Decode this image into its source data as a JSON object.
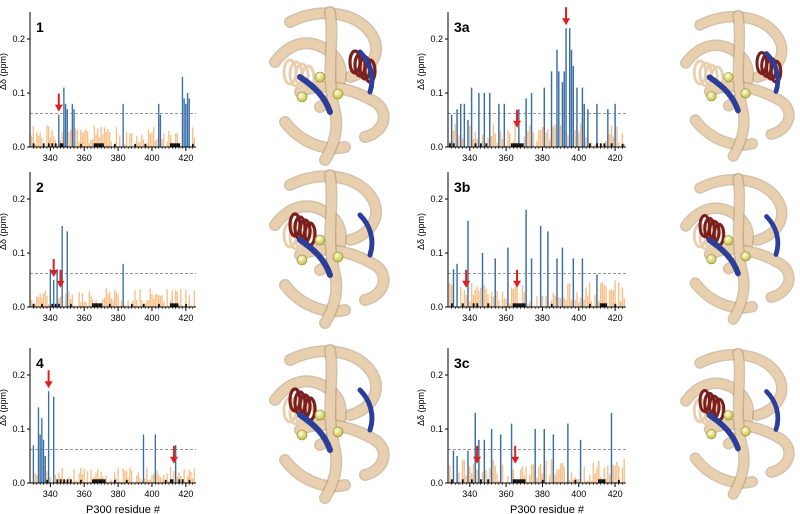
{
  "figure": {
    "xlabel": "P300 residue #",
    "colors": {
      "strong": "#3a6ea8",
      "weak": "#f7c08a",
      "black": "#111111",
      "arrow": "#e02020",
      "threshold": "#9a9a9a",
      "structure_base": "#e8cfae",
      "structure_accent": "#7a1e1e",
      "structure_blue": "#2b3f9a",
      "sphere": "#f2f27a"
    }
  },
  "chart_data": [
    {
      "type": "bar",
      "panel": "1",
      "ylabel": "Δδ (ppm)",
      "xlim": [
        328,
        426
      ],
      "ylim": [
        0,
        0.25
      ],
      "xticks": [
        340,
        360,
        380,
        400,
        420
      ],
      "yticks": [
        0.0,
        0.1,
        0.2
      ],
      "threshold": 0.062,
      "show_xlabel": false,
      "strong": [
        [
          345,
          0.06
        ],
        [
          348,
          0.11
        ],
        [
          349,
          0.08
        ],
        [
          350,
          0.07
        ],
        [
          353,
          0.08
        ],
        [
          354,
          0.07
        ],
        [
          383,
          0.08
        ],
        [
          404,
          0.08
        ],
        [
          405,
          0.06
        ],
        [
          418,
          0.13
        ],
        [
          419,
          0.09
        ],
        [
          420,
          0.08
        ],
        [
          421,
          0.1
        ],
        [
          422,
          0.09
        ]
      ],
      "arrows": [
        345
      ],
      "weak_seed": 1,
      "weak_max": 0.04,
      "black": [
        [
          330,
          0.005
        ],
        [
          336,
          0.005
        ],
        [
          339,
          0.005
        ],
        [
          341,
          0.005
        ],
        [
          343,
          0.005
        ],
        [
          346,
          0.005
        ],
        [
          347,
          0.005
        ],
        [
          358,
          0.004
        ],
        [
          366,
          0.005
        ],
        [
          367,
          0.005
        ],
        [
          368,
          0.005
        ],
        [
          369,
          0.005
        ],
        [
          370,
          0.005
        ],
        [
          371,
          0.005
        ],
        [
          378,
          0.004
        ],
        [
          390,
          0.004
        ],
        [
          396,
          0.004
        ],
        [
          411,
          0.005
        ],
        [
          412,
          0.005
        ],
        [
          413,
          0.005
        ],
        [
          414,
          0.005
        ],
        [
          415,
          0.005
        ],
        [
          416,
          0.005
        ],
        [
          424,
          0.004
        ]
      ]
    },
    {
      "type": "bar",
      "panel": "2",
      "ylabel": "Δδ (ppm)",
      "xlim": [
        328,
        426
      ],
      "ylim": [
        0,
        0.25
      ],
      "xticks": [
        340,
        360,
        380,
        400,
        420
      ],
      "yticks": [
        0.0,
        0.1,
        0.2
      ],
      "threshold": 0.062,
      "show_xlabel": false,
      "strong": [
        [
          340,
          0.07
        ],
        [
          342,
          0.05
        ],
        [
          344,
          0.07
        ],
        [
          347,
          0.15
        ],
        [
          350,
          0.14
        ],
        [
          383,
          0.08
        ]
      ],
      "arrows": [
        342,
        346
      ],
      "weak_seed": 2,
      "weak_max": 0.035,
      "black": [
        [
          330,
          0.004
        ],
        [
          335,
          0.004
        ],
        [
          341,
          0.004
        ],
        [
          343,
          0.004
        ],
        [
          345,
          0.004
        ],
        [
          352,
          0.004
        ],
        [
          365,
          0.005
        ],
        [
          366,
          0.005
        ],
        [
          367,
          0.005
        ],
        [
          368,
          0.005
        ],
        [
          369,
          0.005
        ],
        [
          370,
          0.005
        ],
        [
          375,
          0.004
        ],
        [
          388,
          0.004
        ],
        [
          395,
          0.004
        ],
        [
          404,
          0.004
        ],
        [
          411,
          0.005
        ],
        [
          412,
          0.005
        ],
        [
          413,
          0.005
        ],
        [
          414,
          0.005
        ],
        [
          415,
          0.005
        ],
        [
          420,
          0.004
        ]
      ]
    },
    {
      "type": "bar",
      "panel": "4",
      "ylabel": "Δδ (ppm)",
      "xlim": [
        328,
        426
      ],
      "ylim": [
        0,
        0.25
      ],
      "xticks": [
        340,
        360,
        380,
        400,
        420
      ],
      "yticks": [
        0.0,
        0.1,
        0.2
      ],
      "threshold": 0.062,
      "show_xlabel": true,
      "strong": [
        [
          330,
          0.07
        ],
        [
          333,
          0.14
        ],
        [
          334,
          0.09
        ],
        [
          335,
          0.12
        ],
        [
          336,
          0.08
        ],
        [
          337,
          0.05
        ],
        [
          339,
          0.17
        ],
        [
          342,
          0.16
        ],
        [
          395,
          0.09
        ],
        [
          402,
          0.09
        ],
        [
          414,
          0.07
        ]
      ],
      "arrows": [
        339,
        413
      ],
      "weak_seed": 4,
      "weak_max": 0.03,
      "black": [
        [
          338,
          0.004
        ],
        [
          344,
          0.005
        ],
        [
          346,
          0.005
        ],
        [
          348,
          0.005
        ],
        [
          350,
          0.005
        ],
        [
          352,
          0.005
        ],
        [
          358,
          0.004
        ],
        [
          365,
          0.005
        ],
        [
          366,
          0.005
        ],
        [
          367,
          0.005
        ],
        [
          368,
          0.005
        ],
        [
          369,
          0.005
        ],
        [
          370,
          0.005
        ],
        [
          371,
          0.005
        ],
        [
          372,
          0.005
        ],
        [
          378,
          0.004
        ],
        [
          385,
          0.004
        ],
        [
          408,
          0.004
        ],
        [
          411,
          0.005
        ],
        [
          412,
          0.005
        ],
        [
          416,
          0.005
        ],
        [
          418,
          0.005
        ],
        [
          422,
          0.004
        ]
      ]
    },
    {
      "type": "bar",
      "panel": "3a",
      "ylabel": "Δδ (ppm)",
      "xlim": [
        328,
        426
      ],
      "ylim": [
        0,
        0.25
      ],
      "xticks": [
        340,
        360,
        380,
        400,
        420
      ],
      "yticks": [
        0.0,
        0.1,
        0.2
      ],
      "threshold": 0.062,
      "show_xlabel": false,
      "strong": [
        [
          330,
          0.06
        ],
        [
          333,
          0.07
        ],
        [
          335,
          0.08
        ],
        [
          337,
          0.08
        ],
        [
          339,
          0.05
        ],
        [
          341,
          0.11
        ],
        [
          345,
          0.1
        ],
        [
          348,
          0.1
        ],
        [
          351,
          0.1
        ],
        [
          356,
          0.08
        ],
        [
          359,
          0.08
        ],
        [
          367,
          0.07
        ],
        [
          371,
          0.09
        ],
        [
          374,
          0.1
        ],
        [
          381,
          0.11
        ],
        [
          385,
          0.14
        ],
        [
          388,
          0.18
        ],
        [
          389,
          0.14
        ],
        [
          391,
          0.12
        ],
        [
          392,
          0.14
        ],
        [
          393,
          0.22
        ],
        [
          395,
          0.22
        ],
        [
          396,
          0.18
        ],
        [
          397,
          0.15
        ],
        [
          399,
          0.11
        ],
        [
          402,
          0.11
        ],
        [
          403,
          0.08
        ],
        [
          405,
          0.07
        ],
        [
          410,
          0.08
        ],
        [
          416,
          0.07
        ],
        [
          420,
          0.08
        ]
      ],
      "arrows": [
        366,
        393
      ],
      "weak_seed": 3,
      "weak_max": 0.045,
      "black": [
        [
          329,
          0.005
        ],
        [
          331,
          0.005
        ],
        [
          343,
          0.005
        ],
        [
          346,
          0.005
        ],
        [
          349,
          0.005
        ],
        [
          363,
          0.005
        ],
        [
          364,
          0.005
        ],
        [
          365,
          0.005
        ],
        [
          366,
          0.005
        ],
        [
          367,
          0.005
        ],
        [
          368,
          0.005
        ],
        [
          369,
          0.005
        ],
        [
          406,
          0.005
        ],
        [
          410,
          0.005
        ],
        [
          412,
          0.005
        ],
        [
          414,
          0.005
        ],
        [
          418,
          0.005
        ],
        [
          424,
          0.004
        ]
      ]
    },
    {
      "type": "bar",
      "panel": "3b",
      "ylabel": "Δδ (ppm)",
      "xlim": [
        328,
        426
      ],
      "ylim": [
        0,
        0.25
      ],
      "xticks": [
        340,
        360,
        380,
        400,
        420
      ],
      "yticks": [
        0.0,
        0.1,
        0.2
      ],
      "threshold": 0.062,
      "show_xlabel": false,
      "strong": [
        [
          331,
          0.07
        ],
        [
          333,
          0.08
        ],
        [
          339,
          0.16
        ],
        [
          347,
          0.1
        ],
        [
          354,
          0.09
        ],
        [
          361,
          0.11
        ],
        [
          371,
          0.18
        ],
        [
          374,
          0.09
        ],
        [
          379,
          0.15
        ],
        [
          383,
          0.14
        ],
        [
          388,
          0.09
        ],
        [
          391,
          0.11
        ],
        [
          397,
          0.09
        ],
        [
          402,
          0.09
        ],
        [
          410,
          0.06
        ]
      ],
      "arrows": [
        338,
        366
      ],
      "weak_seed": 5,
      "weak_max": 0.05,
      "black": [
        [
          330,
          0.005
        ],
        [
          336,
          0.005
        ],
        [
          342,
          0.005
        ],
        [
          344,
          0.005
        ],
        [
          350,
          0.005
        ],
        [
          364,
          0.005
        ],
        [
          365,
          0.005
        ],
        [
          366,
          0.005
        ],
        [
          367,
          0.005
        ],
        [
          368,
          0.005
        ],
        [
          369,
          0.005
        ],
        [
          370,
          0.005
        ],
        [
          385,
          0.004
        ],
        [
          406,
          0.004
        ],
        [
          412,
          0.005
        ],
        [
          413,
          0.005
        ],
        [
          414,
          0.005
        ],
        [
          415,
          0.005
        ],
        [
          420,
          0.004
        ]
      ]
    },
    {
      "type": "bar",
      "panel": "3c",
      "ylabel": "Δδ (ppm)",
      "xlim": [
        328,
        426
      ],
      "ylim": [
        0,
        0.25
      ],
      "xticks": [
        340,
        360,
        380,
        400,
        420
      ],
      "yticks": [
        0.0,
        0.1,
        0.2
      ],
      "threshold": 0.062,
      "show_xlabel": true,
      "strong": [
        [
          331,
          0.06
        ],
        [
          333,
          0.05
        ],
        [
          339,
          0.06
        ],
        [
          343,
          0.13
        ],
        [
          345,
          0.08
        ],
        [
          348,
          0.08
        ],
        [
          352,
          0.1
        ],
        [
          357,
          0.09
        ],
        [
          363,
          0.11
        ],
        [
          376,
          0.1
        ],
        [
          381,
          0.1
        ],
        [
          386,
          0.09
        ],
        [
          394,
          0.11
        ],
        [
          401,
          0.08
        ],
        [
          418,
          0.13
        ]
      ],
      "arrows": [
        344,
        365
      ],
      "weak_seed": 6,
      "weak_max": 0.045,
      "black": [
        [
          330,
          0.005
        ],
        [
          336,
          0.005
        ],
        [
          341,
          0.005
        ],
        [
          346,
          0.005
        ],
        [
          350,
          0.005
        ],
        [
          364,
          0.005
        ],
        [
          365,
          0.005
        ],
        [
          366,
          0.005
        ],
        [
          367,
          0.005
        ],
        [
          368,
          0.005
        ],
        [
          369,
          0.005
        ],
        [
          370,
          0.005
        ],
        [
          380,
          0.004
        ],
        [
          398,
          0.004
        ],
        [
          411,
          0.005
        ],
        [
          412,
          0.005
        ],
        [
          413,
          0.005
        ],
        [
          414,
          0.005
        ],
        [
          422,
          0.004
        ]
      ]
    }
  ]
}
